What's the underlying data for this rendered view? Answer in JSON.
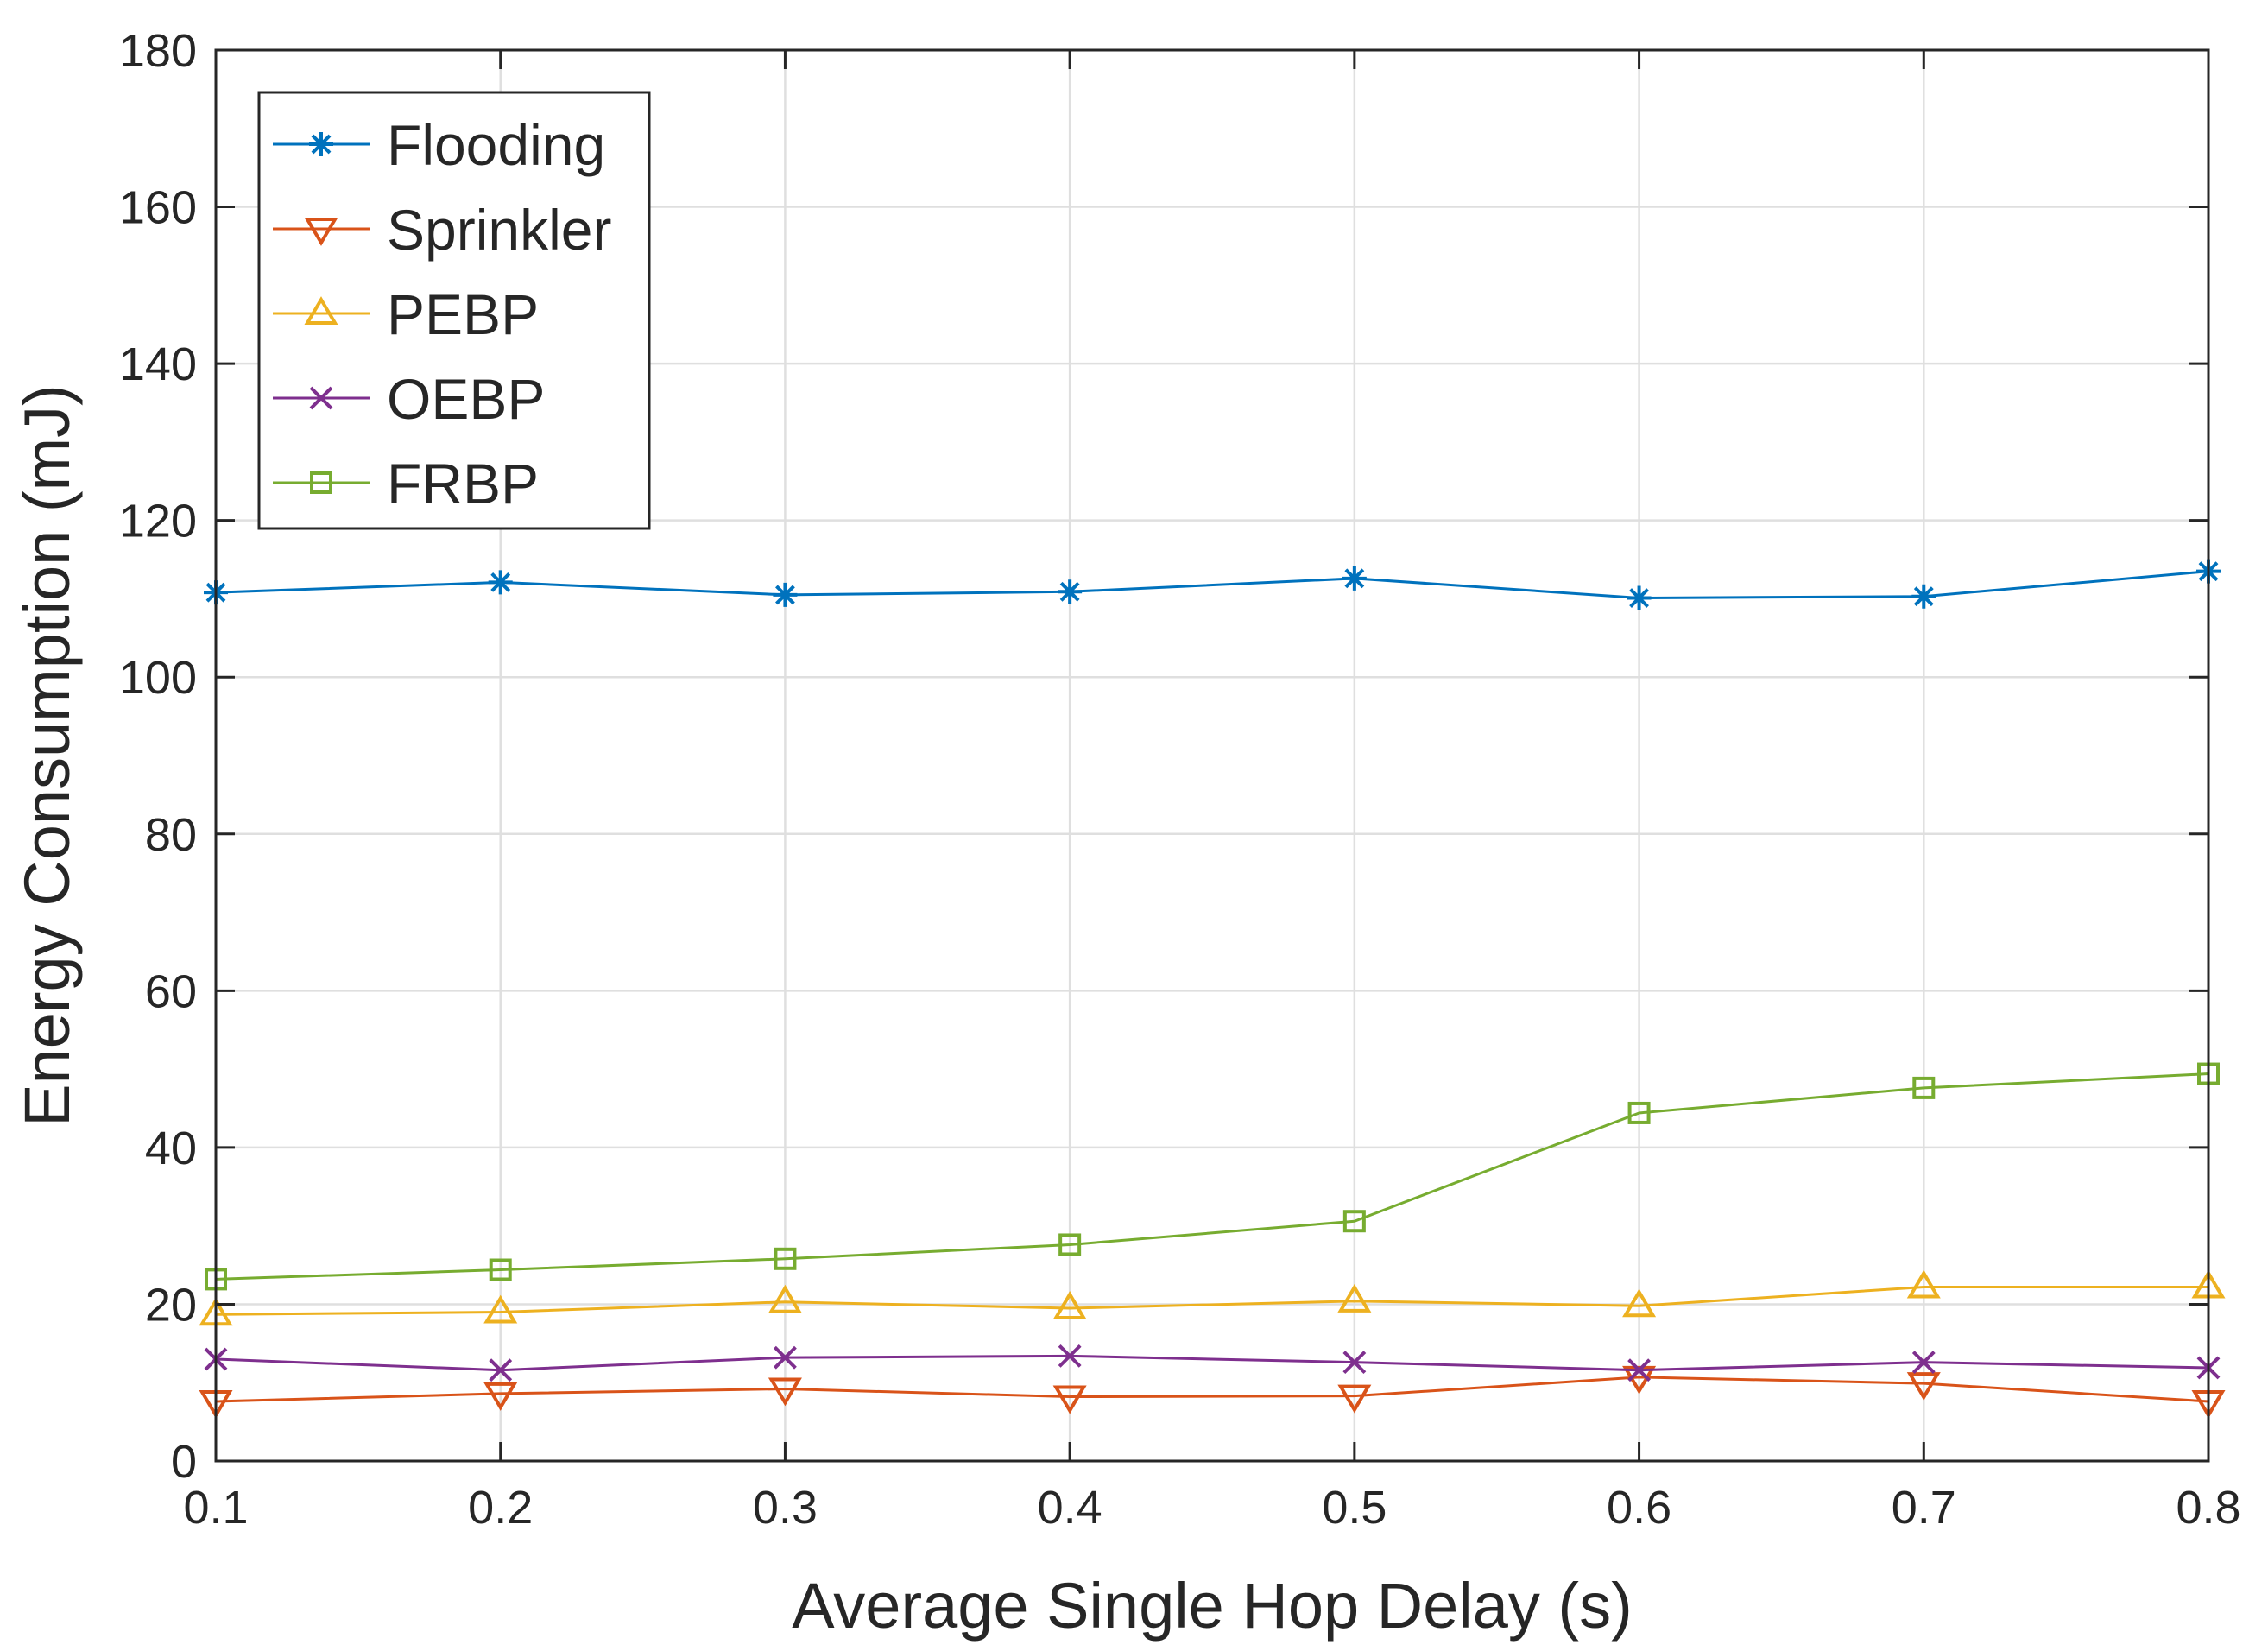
{
  "chart_data": {
    "type": "line",
    "title": "",
    "xlabel": "Average Single Hop Delay (s)",
    "ylabel": "Energy Consumption (mJ)",
    "xlim": [
      0.1,
      0.8
    ],
    "ylim": [
      0,
      180
    ],
    "grid": true,
    "legend_position": "top-left",
    "x": [
      0.1,
      0.2,
      0.3,
      0.4,
      0.5,
      0.6,
      0.7,
      0.8
    ],
    "xticks": [
      "0.1",
      "0.2",
      "0.3",
      "0.4",
      "0.5",
      "0.6",
      "0.7",
      "0.8"
    ],
    "yticks": [
      "0",
      "20",
      "40",
      "60",
      "80",
      "100",
      "120",
      "140",
      "160",
      "180"
    ],
    "series": [
      {
        "name": "Flooding",
        "color": "#0072bd",
        "marker": "asterisk",
        "values": [
          110.8,
          112.1,
          110.5,
          110.9,
          112.6,
          110.1,
          110.3,
          113.5
        ]
      },
      {
        "name": "Sprinkler",
        "color": "#d95319",
        "marker": "triangle-down",
        "values": [
          7.6,
          8.6,
          9.2,
          8.2,
          8.3,
          10.7,
          9.9,
          7.6
        ]
      },
      {
        "name": "PEBP",
        "color": "#edb120",
        "marker": "triangle-up",
        "values": [
          18.7,
          19.0,
          20.3,
          19.5,
          20.4,
          19.8,
          22.2,
          22.2
        ]
      },
      {
        "name": "OEBP",
        "color": "#7e2f8e",
        "marker": "x",
        "values": [
          13.0,
          11.6,
          13.2,
          13.4,
          12.6,
          11.6,
          12.6,
          11.9
        ]
      },
      {
        "name": "FRBP",
        "color": "#77ac30",
        "marker": "square",
        "values": [
          23.2,
          24.4,
          25.8,
          27.6,
          30.6,
          44.4,
          47.6,
          49.4
        ]
      }
    ]
  }
}
